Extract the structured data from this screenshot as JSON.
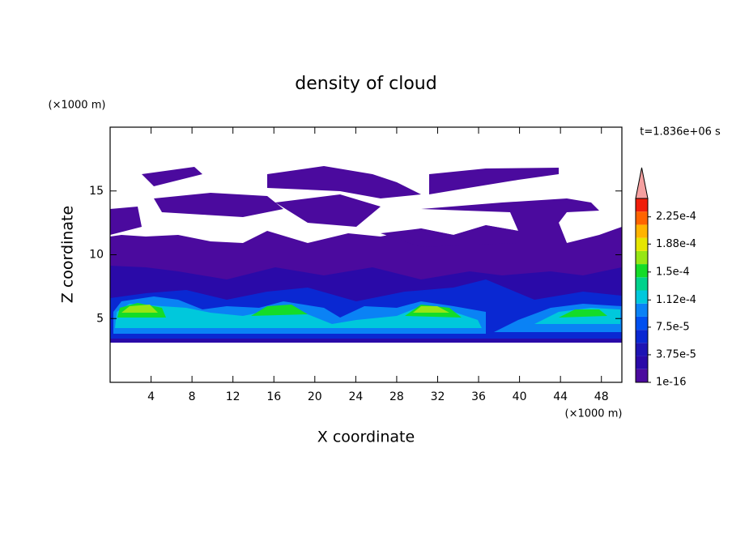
{
  "chart_data": {
    "type": "contour",
    "title": "density of cloud",
    "time_label": "t=1.836e+06 s",
    "x_label": "X coordinate",
    "y_label": "Z coordinate",
    "x_unit": "(×1000 m)",
    "y_unit": "(×1000 m)",
    "xlim": [
      0,
      50
    ],
    "ylim": [
      0,
      20
    ],
    "xticks": [
      4,
      8,
      12,
      16,
      20,
      24,
      28,
      32,
      36,
      40,
      44,
      48
    ],
    "yticks": [
      5,
      10,
      15
    ],
    "colorbar": {
      "clim": [
        1e-16,
        0.00025
      ],
      "colors": [
        "#4b0a9e",
        "#2a0aa8",
        "#1e14b4",
        "#0a28d2",
        "#0050f0",
        "#0a82f5",
        "#00c8dc",
        "#00d28c",
        "#14dc28",
        "#96e614",
        "#e6e600",
        "#ffb400",
        "#ff6400",
        "#f01e0a"
      ],
      "extend_color": "#f5a0a0",
      "ticks": [
        {
          "value": 1e-16,
          "label": "1e-16"
        },
        {
          "value": 3.75e-05,
          "label": "3.75e-5"
        },
        {
          "value": 7.5e-05,
          "label": "7.5e-5"
        },
        {
          "value": 0.000112,
          "label": "1.12e-4"
        },
        {
          "value": 0.00015,
          "label": "1.5e-4"
        },
        {
          "value": 0.000188,
          "label": "1.88e-4"
        },
        {
          "value": 0.000225,
          "label": "2.25e-4"
        }
      ]
    }
  }
}
